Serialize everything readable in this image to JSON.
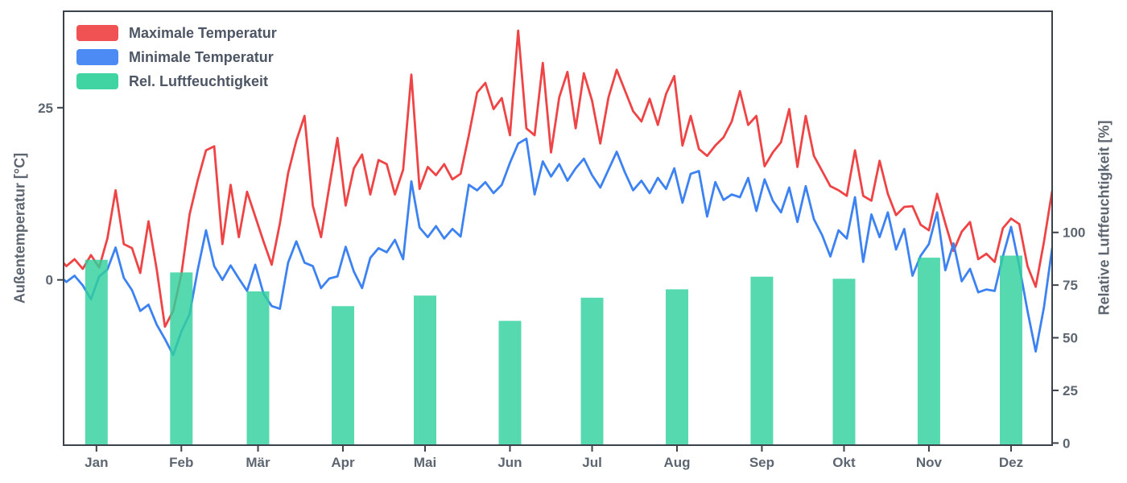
{
  "figure": {
    "background": "#ffffff",
    "spine_color": "#3b424c",
    "tick_text_color": "#5d6670"
  },
  "legend": {
    "items": [
      {
        "label": "Maximale Temperatur"
      },
      {
        "label": "Minimale Temperatur"
      },
      {
        "label": "Rel. Luftfeuchtigkeit"
      }
    ]
  },
  "chart_data": {
    "type": "combo",
    "x_axis": {
      "categories": [
        "Jan",
        "Feb",
        "Mär",
        "Apr",
        "Mai",
        "Jun",
        "Jul",
        "Aug",
        "Sep",
        "Okt",
        "Nov",
        "Dez"
      ],
      "tick_days": [
        14,
        45,
        73,
        104,
        134,
        165,
        195,
        226,
        257,
        287,
        318,
        348
      ],
      "range_days": [
        2,
        363
      ]
    },
    "left_axis": {
      "label": "Außentemperatur [°C]",
      "unit": "°C",
      "ticks": [
        0,
        25
      ],
      "range": [
        -24,
        39
      ]
    },
    "right_axis": {
      "label": "Relative Luftfeuchtigkeit [%]",
      "unit": "%",
      "ticks": [
        0,
        25,
        50,
        75,
        100
      ],
      "range": [
        -1,
        205
      ]
    },
    "grid": false,
    "legend_position": "upper left",
    "series": [
      {
        "name": "Maximale Temperatur",
        "type": "line",
        "axis": "temperature",
        "color": "#ef4446",
        "start_day": 0,
        "sample_interval_days": 3,
        "values": [
          3.4,
          2.0,
          3.0,
          1.6,
          3.6,
          1.8,
          6.0,
          13.0,
          5.2,
          4.6,
          1.0,
          8.5,
          1.5,
          -6.8,
          -4.5,
          0.8,
          9.5,
          14.5,
          18.8,
          19.4,
          5.2,
          13.8,
          6.2,
          12.8,
          9.2,
          5.6,
          2.2,
          8.2,
          15.5,
          20.2,
          23.8,
          10.8,
          6.2,
          13.5,
          20.6,
          10.8,
          16.2,
          18.2,
          12.4,
          17.4,
          16.8,
          12.4,
          16.0,
          29.8,
          13.2,
          16.4,
          15.2,
          16.8,
          14.6,
          15.4,
          21.0,
          27.2,
          28.6,
          24.8,
          26.4,
          21.0,
          36.2,
          22.0,
          21.0,
          31.5,
          18.5,
          26.5,
          30.2,
          22.0,
          30.0,
          26.0,
          19.8,
          26.5,
          30.5,
          27.5,
          24.5,
          23.0,
          26.3,
          22.5,
          27.0,
          29.6,
          19.5,
          23.8,
          19.0,
          18.0,
          19.5,
          20.7,
          23.0,
          27.4,
          22.5,
          23.8,
          16.5,
          18.5,
          20.0,
          24.8,
          16.4,
          23.8,
          18.0,
          15.8,
          13.6,
          13.0,
          12.2,
          18.8,
          12.2,
          11.5,
          17.3,
          12.5,
          9.4,
          10.6,
          10.7,
          8.0,
          7.2,
          12.5,
          8.2,
          4.2,
          7.0,
          8.4,
          3.0,
          3.8,
          2.6,
          7.5,
          8.9,
          8.1,
          2.0,
          -1.0,
          5.5,
          12.9
        ]
      },
      {
        "name": "Minimale Temperatur",
        "type": "line",
        "axis": "temperature",
        "color": "#3d82f2",
        "start_day": 0,
        "sample_interval_days": 3,
        "values": [
          0.8,
          -0.3,
          0.6,
          -0.8,
          -2.8,
          0.5,
          1.5,
          4.7,
          0.3,
          -1.5,
          -4.5,
          -3.6,
          -6.5,
          -8.6,
          -10.9,
          -7.5,
          -5.0,
          1.5,
          7.2,
          2.0,
          0.0,
          2.1,
          0.2,
          -1.6,
          2.2,
          -2.0,
          -3.8,
          -4.2,
          2.5,
          5.6,
          2.5,
          2.0,
          -1.2,
          0.2,
          0.5,
          4.8,
          1.2,
          -1.2,
          3.2,
          4.6,
          4.0,
          5.8,
          3.0,
          14.3,
          7.6,
          6.2,
          7.8,
          6.0,
          7.4,
          6.3,
          13.8,
          13.0,
          14.2,
          12.6,
          13.8,
          17.0,
          19.8,
          20.5,
          12.4,
          17.2,
          15.0,
          16.8,
          14.4,
          16.2,
          17.6,
          15.2,
          13.4,
          16.0,
          18.6,
          15.6,
          13.0,
          14.4,
          12.6,
          14.8,
          13.2,
          16.2,
          11.2,
          15.4,
          15.8,
          9.2,
          14.2,
          11.6,
          12.4,
          12.0,
          14.8,
          10.0,
          14.6,
          11.5,
          9.8,
          13.4,
          8.4,
          13.6,
          8.8,
          6.5,
          3.4,
          7.2,
          6.0,
          12.0,
          2.6,
          9.5,
          6.2,
          9.8,
          4.4,
          7.4,
          0.6,
          3.5,
          5.2,
          9.8,
          1.4,
          5.3,
          -0.2,
          1.6,
          -1.8,
          -1.4,
          -1.6,
          3.4,
          7.7,
          2.0,
          -4.5,
          -10.4,
          -4.0,
          4.6
        ]
      },
      {
        "name": "Rel. Luftfeuchtigkeit",
        "type": "bar",
        "axis": "humidity",
        "color": "#31d19c",
        "categories": [
          "Jan",
          "Feb",
          "Mär",
          "Apr",
          "Mai",
          "Jun",
          "Jul",
          "Aug",
          "Sep",
          "Okt",
          "Nov",
          "Dez"
        ],
        "values": [
          87,
          81,
          72,
          65,
          70,
          58,
          69,
          73,
          79,
          78,
          88,
          89
        ]
      }
    ]
  }
}
